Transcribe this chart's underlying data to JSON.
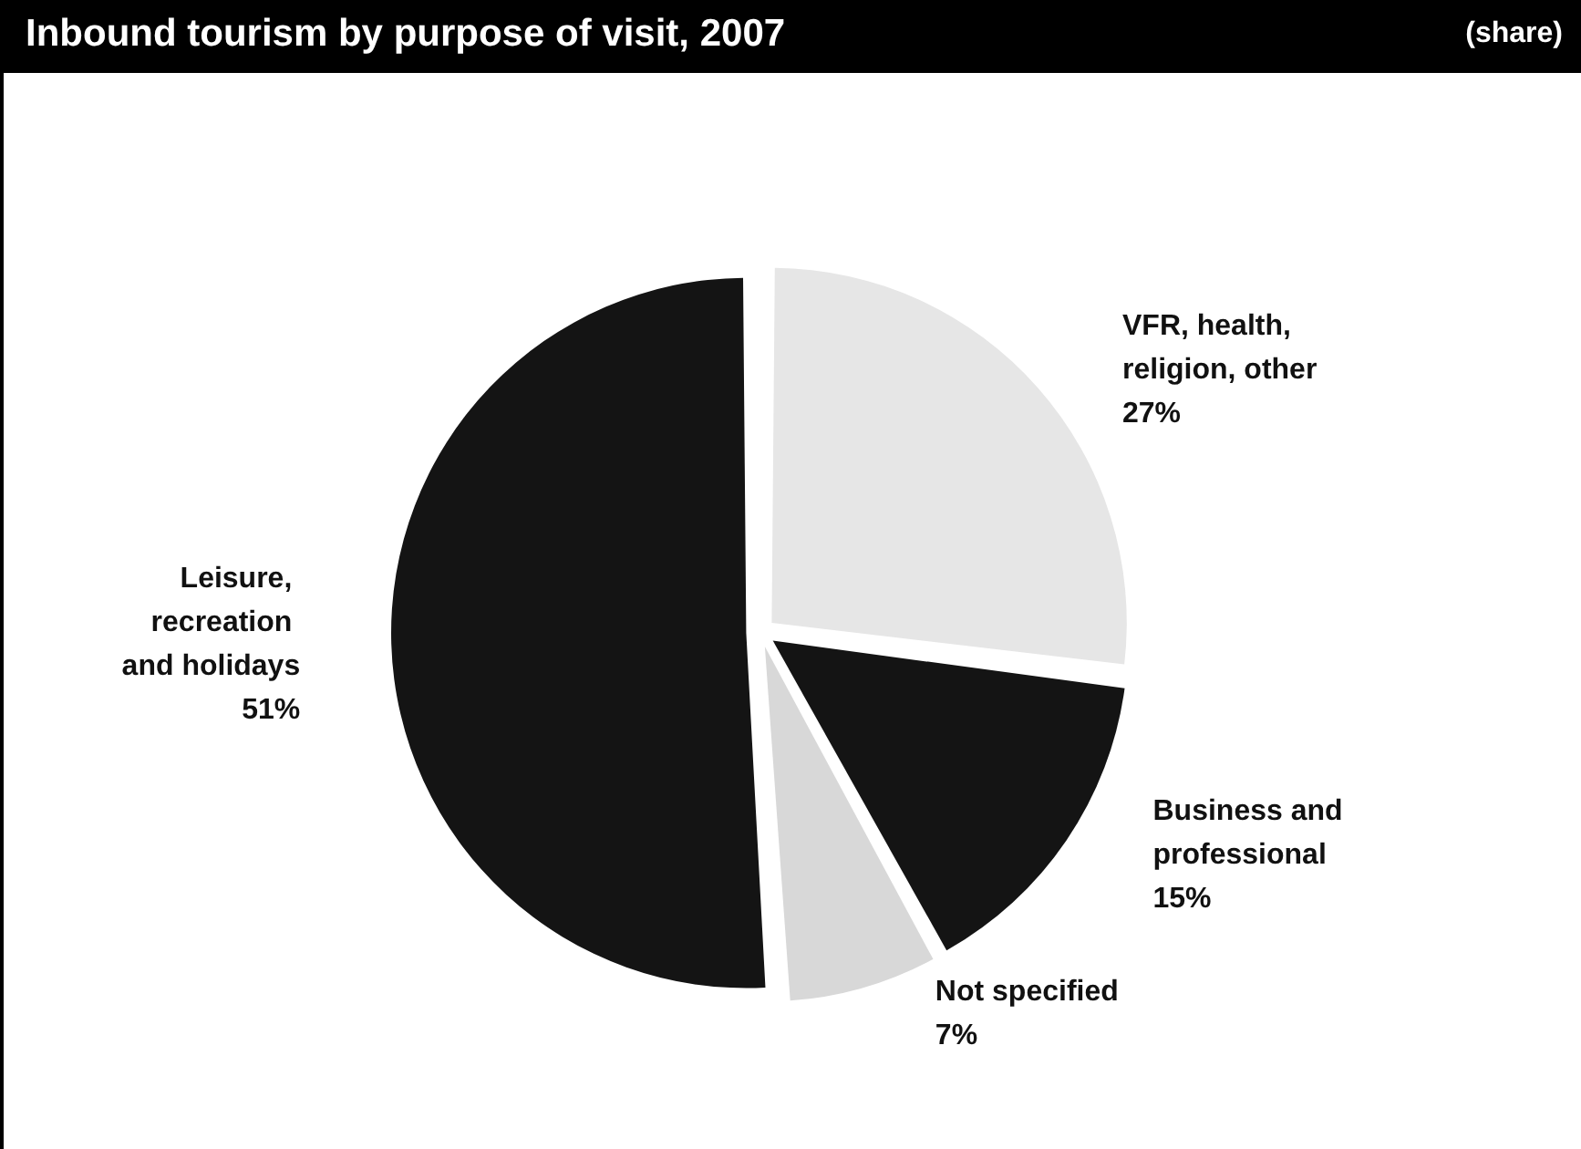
{
  "chart_data": {
    "type": "pie",
    "title": "Inbound tourism by purpose of visit, 2007",
    "subtitle": "(share)",
    "categories": [
      "VFR, health, religion, other",
      "Business and professional",
      "Not specified",
      "Leisure, recreation and holidays"
    ],
    "values": [
      27,
      15,
      7,
      51
    ],
    "colors": [
      "#e6e6e6",
      "#141414",
      "#d8d8d8",
      "#141414"
    ],
    "value_labels": [
      "27%",
      "15%",
      "7%",
      "51%"
    ],
    "legend": false
  }
}
